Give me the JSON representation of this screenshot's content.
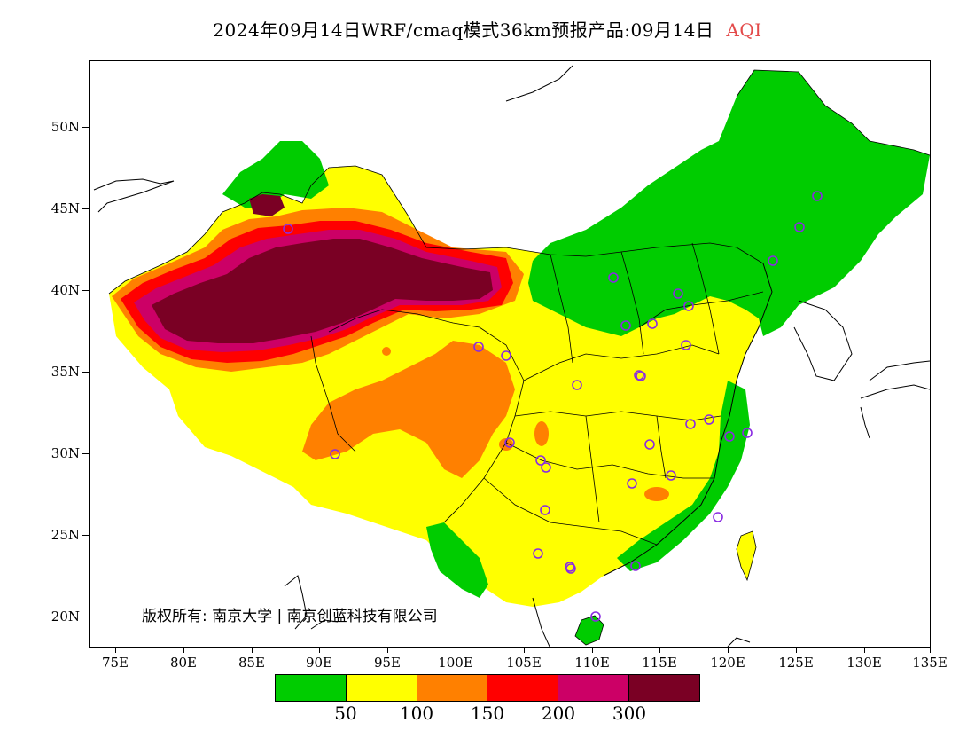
{
  "title": {
    "main": "2024年09月14日WRF/cmaq模式36km预报产品:09月14日",
    "variable": "AQI",
    "variable_color": "#e34a4a"
  },
  "axes": {
    "y_labels": [
      "50N",
      "45N",
      "40N",
      "35N",
      "30N",
      "25N",
      "20N"
    ],
    "x_labels": [
      "75E",
      "80E",
      "85E",
      "90E",
      "95E",
      "100E",
      "105E",
      "110E",
      "115E",
      "120E",
      "125E",
      "130E",
      "135E"
    ]
  },
  "copyright": "版权所有: 南京大学 | 南京创蓝科技有限公司",
  "legend": {
    "colors": [
      "#00cc00",
      "#ffff00",
      "#ff8000",
      "#ff0000",
      "#cc0066",
      "#7a0024"
    ],
    "labels": [
      "50",
      "100",
      "150",
      "200",
      "300"
    ]
  },
  "map": {
    "colors": {
      "good": "#00cc00",
      "moderate": "#ffff00",
      "light": "#ff8000",
      "medium": "#ff0000",
      "heavy": "#cc0066",
      "severe": "#7a0024",
      "station": "#8a2be2",
      "boundary": "#000000"
    }
  }
}
